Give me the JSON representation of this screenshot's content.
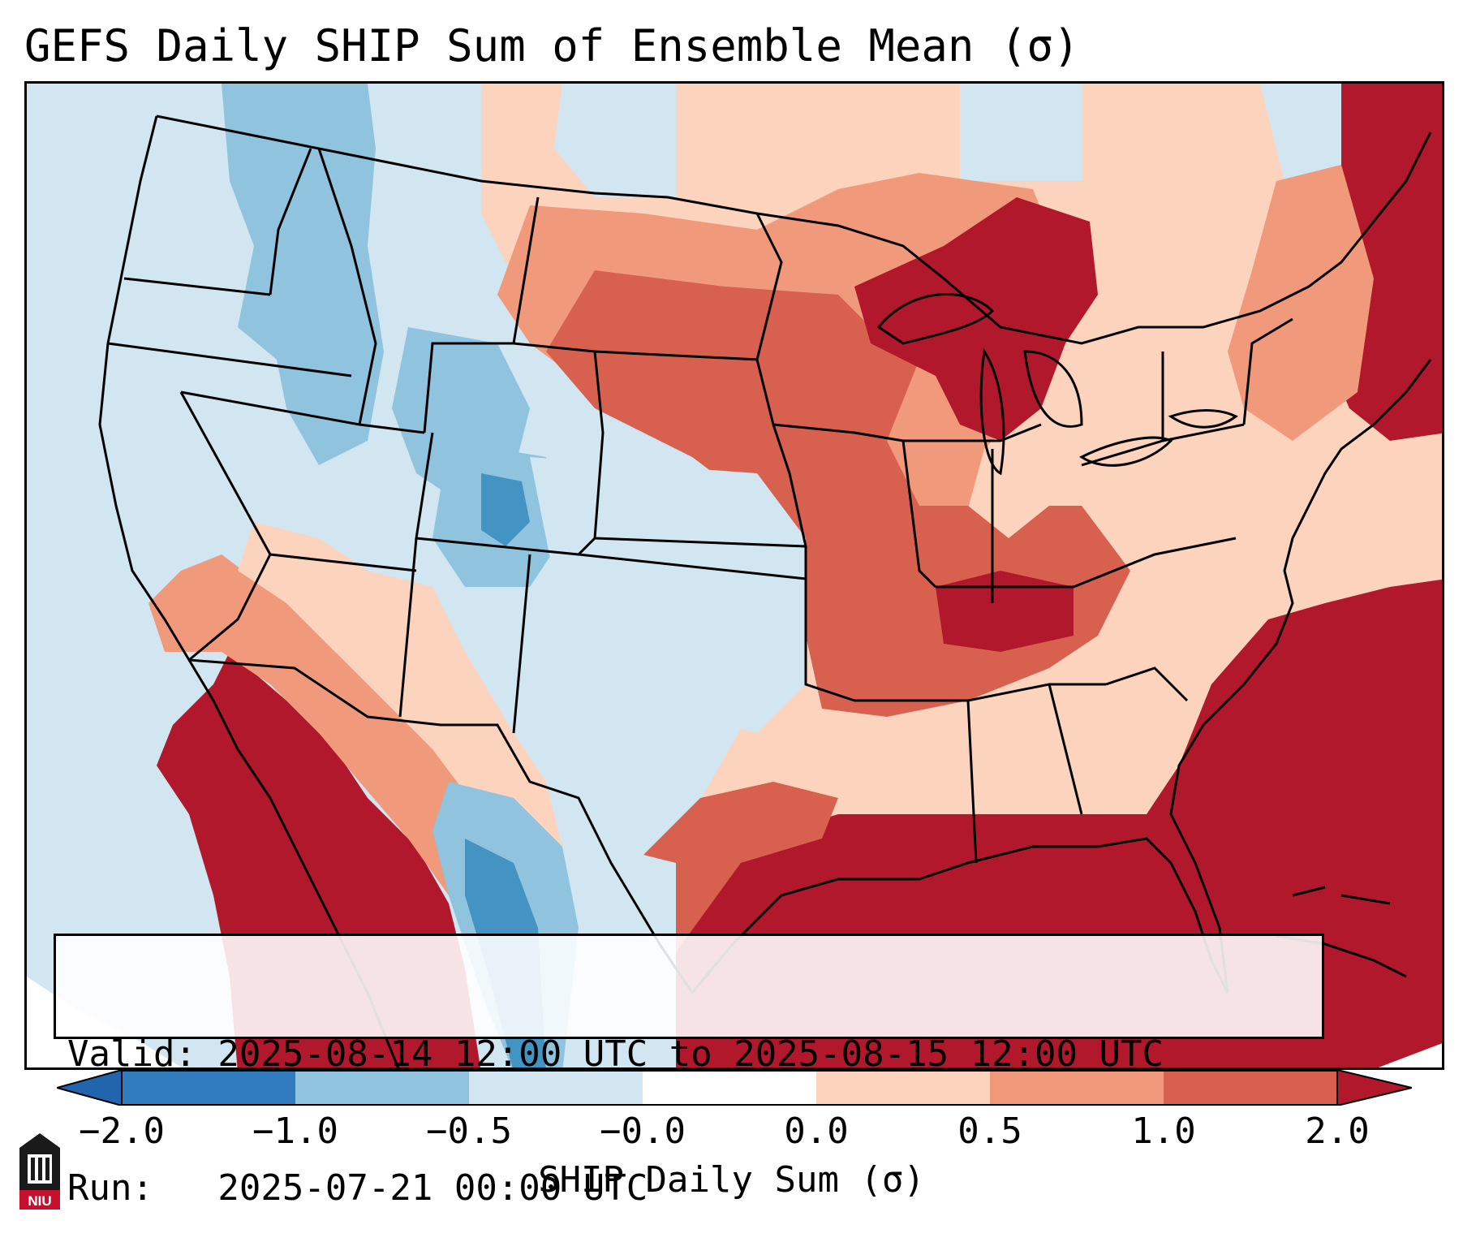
{
  "title": "GEFS Daily SHIP Sum of Ensemble Mean (σ)",
  "info": {
    "valid_line": "Valid: 2025-08-14 12:00 UTC to 2025-08-15 12:00 UTC",
    "run_line": "Run:   2025-07-21 00:00 UTC"
  },
  "colorbar": {
    "label": "SHIP Daily Sum (σ)",
    "ticks": [
      "−2.0",
      "−1.0",
      "−0.5",
      "−0.0",
      "0.0",
      "0.5",
      "1.0",
      "2.0"
    ],
    "colors": [
      "#2f7bbd",
      "#8fc3de",
      "#d2e6f2",
      "#ffffff",
      "#fcd3bc",
      "#f0997b",
      "#d7604f",
      "#b2182b"
    ],
    "extend_low_color": "#2166ac",
    "extend_high_color": "#b2182b"
  },
  "logo": {
    "text": "NIU",
    "icon": "university-building-icon"
  },
  "map_colors": {
    "land_border": "#000000",
    "background": "#d2e6f2"
  }
}
